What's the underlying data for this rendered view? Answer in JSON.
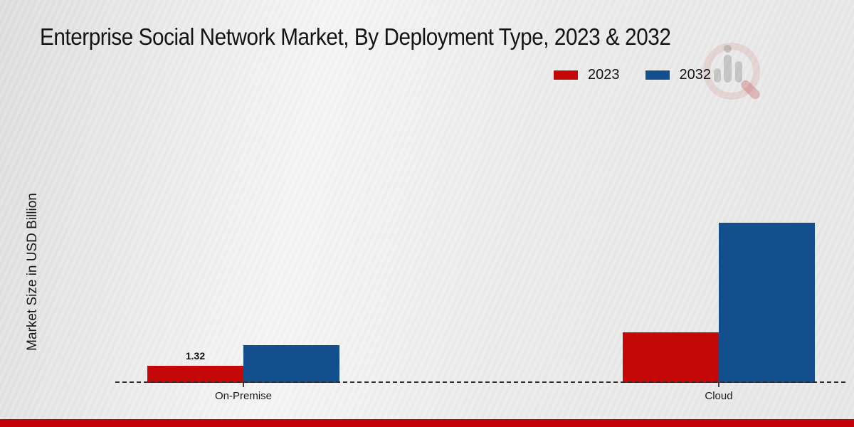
{
  "title": "Enterprise Social Network Market, By Deployment Type, 2023 & 2032",
  "ylabel": "Market Size in USD Billion",
  "legend": {
    "items": [
      {
        "label": "2023",
        "color": "#c40808"
      },
      {
        "label": "2032",
        "color": "#124f8c"
      }
    ]
  },
  "chart_data": {
    "type": "bar",
    "title": "Enterprise Social Network Market, By Deployment Type, 2023 & 2032",
    "ylabel": "Market Size in USD Billion",
    "xlabel": "",
    "categories": [
      "On-Premise",
      "Cloud"
    ],
    "series": [
      {
        "name": "2023",
        "color": "#c40808",
        "values": [
          1.32,
          3.9
        ],
        "value_labels": [
          "1.32",
          ""
        ]
      },
      {
        "name": "2032",
        "color": "#124f8c",
        "values": [
          2.9,
          12.4
        ],
        "value_labels": [
          "",
          ""
        ]
      }
    ],
    "ylim": [
      0,
      13
    ],
    "grid": false,
    "legend_position": "top-right",
    "baseline_style": "dashed",
    "units": "USD Billion"
  },
  "watermark": {
    "name": "magnifier-bar-chart-logo"
  },
  "footer_bar_color": "#c3000a"
}
